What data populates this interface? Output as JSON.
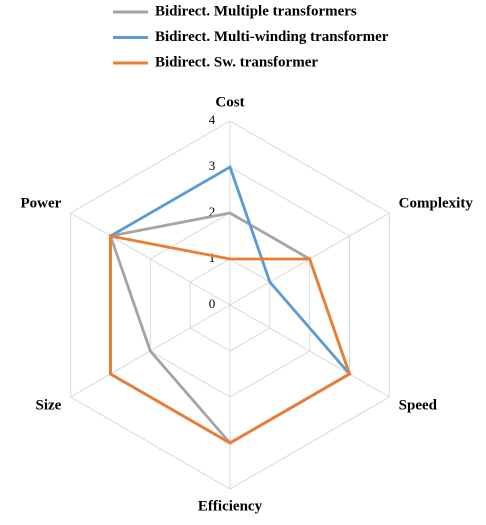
{
  "chart_data": {
    "type": "radar",
    "categories": [
      "Cost",
      "Complexity",
      "Speed",
      "Efficiency",
      "Size",
      "Power"
    ],
    "series": [
      {
        "name": "Bidirect. Multiple transformers",
        "color": "#a5a5a5",
        "values": [
          2,
          2,
          3,
          3,
          2,
          3
        ]
      },
      {
        "name": "Bidirect. Multi-winding transformer",
        "color": "#5b9bd5",
        "values": [
          3,
          1,
          3,
          3,
          3,
          3
        ]
      },
      {
        "name": "Bidirect. Sw. transformer",
        "color": "#ed7d31",
        "values": [
          1,
          2,
          3,
          3,
          3,
          3
        ]
      }
    ],
    "rlim": [
      0,
      4
    ],
    "rticks": [
      0,
      1,
      2,
      3,
      4
    ],
    "grid": true,
    "legend": "top"
  }
}
